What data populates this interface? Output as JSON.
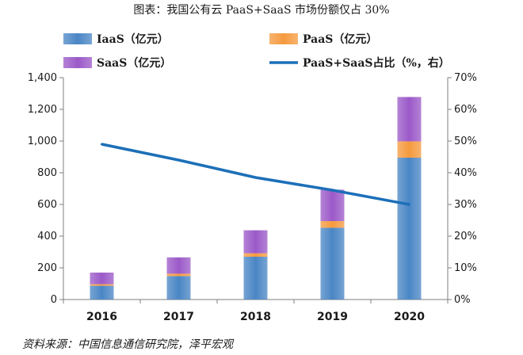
{
  "title": "图表：我国公有云 PaaS+SaaS 市场份额仅占 30%",
  "source": "资料来源：中国信息通信研究院，泽平宏观",
  "chart_data": {
    "type": "bar",
    "stacked": true,
    "categories": [
      "2016",
      "2017",
      "2018",
      "2019",
      "2020"
    ],
    "series": [
      {
        "name": "IaaS（亿元）",
        "values": [
          87,
          148,
          270,
          453,
          895
        ],
        "color": "#4a86c5",
        "axis": "left"
      },
      {
        "name": "PaaS（亿元）",
        "values": [
          10,
          15,
          22,
          42,
          103
        ],
        "color": "#f59a3e",
        "axis": "left"
      },
      {
        "name": "SaaS（亿元）",
        "values": [
          73,
          103,
          145,
          198,
          280
        ],
        "color": "#9b59c8",
        "axis": "left"
      }
    ],
    "line_series": {
      "name": "PaaS+SaaS占比（%，右）",
      "values": [
        49,
        44,
        38.5,
        34.5,
        30
      ],
      "color": "#1c6fb8",
      "axis": "right"
    },
    "yticks_left": [
      "0",
      "200",
      "400",
      "600",
      "800",
      "1,000",
      "1,200",
      "1,400"
    ],
    "yticks_right": [
      "0%",
      "10%",
      "20%",
      "30%",
      "40%",
      "50%",
      "60%",
      "70%"
    ],
    "ylim_left": [
      0,
      1400
    ],
    "ylim_right": [
      0,
      70
    ],
    "legend_placement": "top"
  }
}
